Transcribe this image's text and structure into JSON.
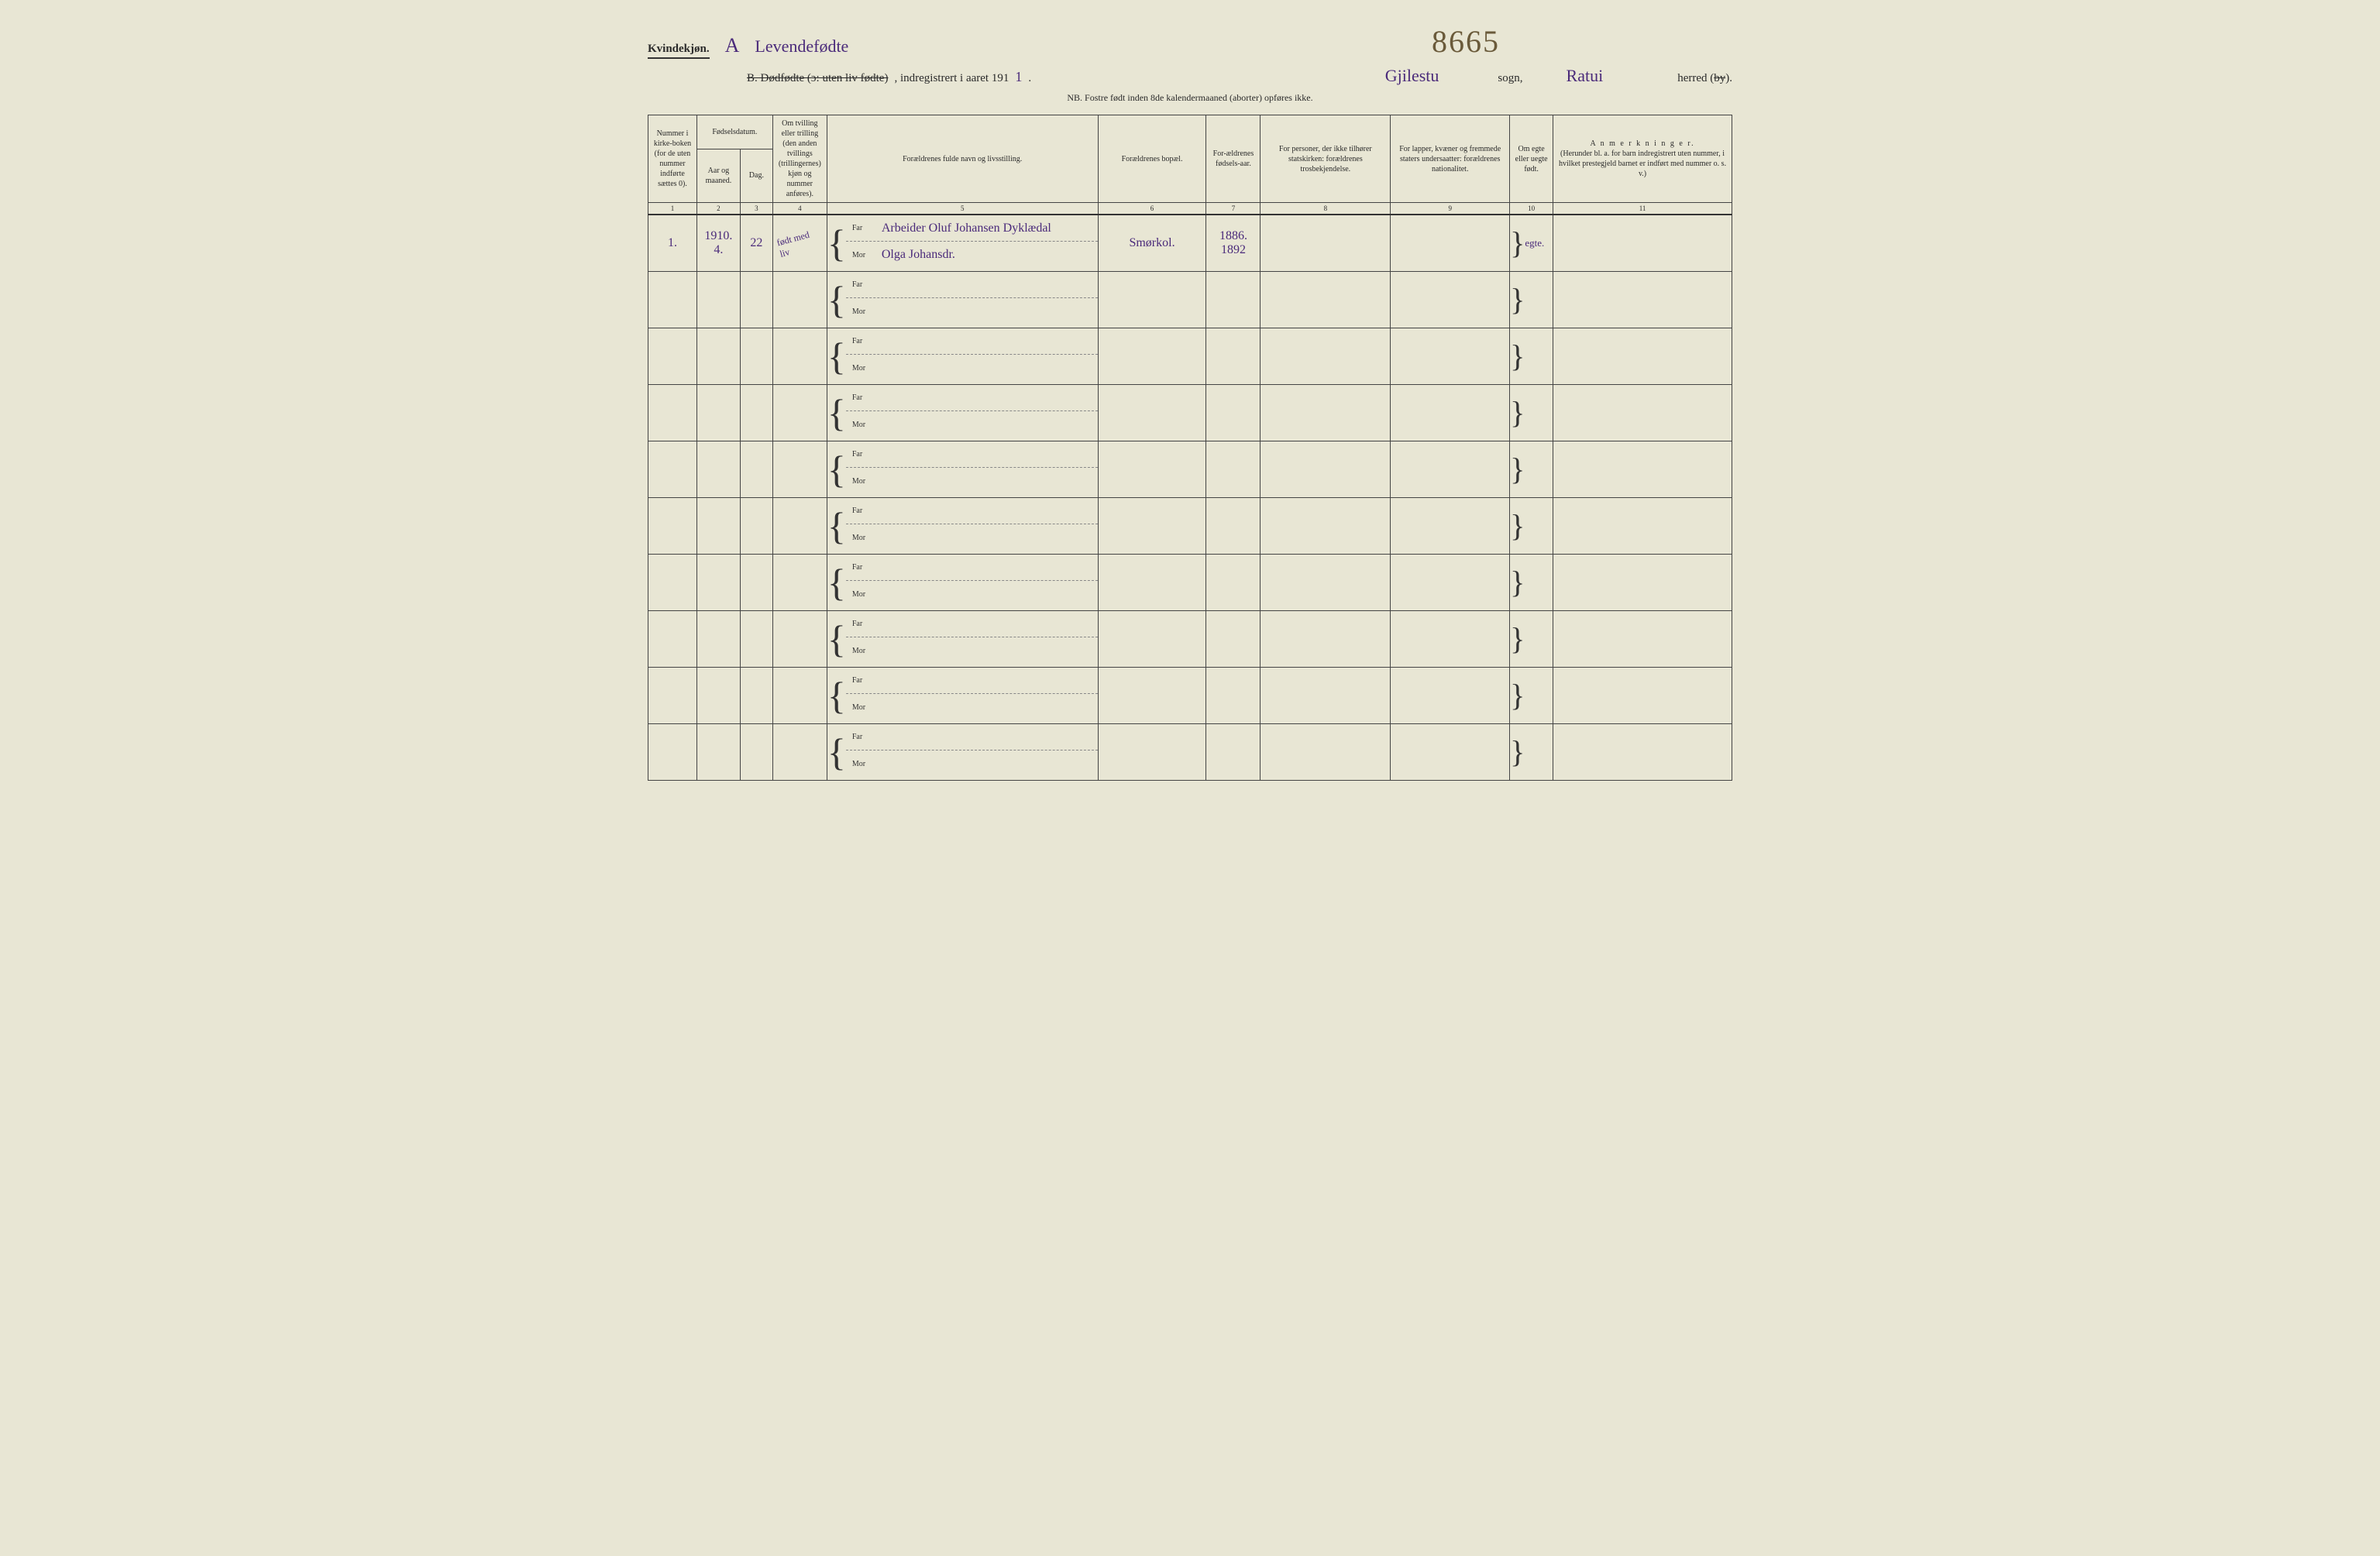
{
  "header": {
    "kvinde": "Kvindekjøn.",
    "A_label": "A",
    "A_text": "Levendefødte",
    "B_strike": "B.  Dødfødte (ɔ: uten liv fødte)",
    "registered": ", indregistrert i aaret 191",
    "year_hw": "1",
    "period": ".",
    "sogn_hw1": "Gjilestu",
    "sogn_label": "sogn,",
    "big_number": "8665",
    "sogn_hw2": "Ratui",
    "herred": "herred (",
    "by_strike": "by",
    "herred_end": ")."
  },
  "nb": "NB.  Fostre født inden 8de kalendermaaned (aborter) opføres ikke.",
  "columns": {
    "c1": "Nummer i kirke-boken (for de uten nummer indførte sættes 0).",
    "c2_group": "Fødselsdatum.",
    "c2a": "Aar og maaned.",
    "c2b": "Dag.",
    "c4": "Om tvilling eller trilling (den anden tvillings (trillingernes) kjøn og nummer anføres).",
    "c5": "Forældrenes fulde navn og livsstilling.",
    "c6": "Forældrenes bopæl.",
    "c7": "For-ældrenes fødsels-aar.",
    "c8": "For personer, der ikke tilhører statskirken: forældrenes trosbekjendelse.",
    "c9": "For lapper, kvæner og fremmede staters undersaatter: forældrenes nationalitet.",
    "c10": "Om egte eller uegte født.",
    "c11_title": "A n m e r k n i n g e r.",
    "c11_sub": "(Herunder bl. a. for barn indregistrert uten nummer, i hvilket prestegjeld barnet er indført med nummer o. s. v.)"
  },
  "colnums": [
    "1",
    "2",
    "3",
    "4",
    "5",
    "6",
    "7",
    "8",
    "9",
    "10",
    "11"
  ],
  "farmor": {
    "far": "Far",
    "mor": "Mor"
  },
  "row1": {
    "num": "1.",
    "aar": "1910.",
    "maaned": "4.",
    "dag": "22",
    "tvilling": "født med liv",
    "far_name": "Arbeider Oluf Johansen Dyklædal",
    "mor_name": "Olga Johansdr.",
    "bopael": "Smørkol.",
    "far_aar": "1886.",
    "mor_aar": "1892",
    "egte": "egte."
  }
}
